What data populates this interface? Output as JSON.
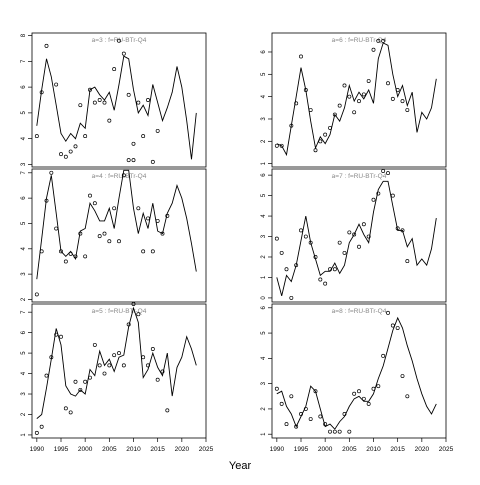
{
  "figure": {
    "xlabel": "Year",
    "panel_rows": 3,
    "panel_cols": 2,
    "x_ticks": [
      1990,
      1995,
      2000,
      2005,
      2010,
      2015,
      2020,
      2025
    ],
    "xlim": [
      1989,
      2025
    ],
    "line_color": "#000000",
    "point_color": "#000000",
    "title_color": "#888888"
  },
  "chart_data": [
    {
      "type": "line",
      "title": "a=3 : f=RU-BTr-Q4",
      "ylim": [
        2.9,
        8.1
      ],
      "y_ticks": [
        3,
        4,
        5,
        6,
        7,
        8
      ],
      "line": {
        "x": [
          1990,
          1991,
          1992,
          1993,
          1994,
          1995,
          1996,
          1997,
          1998,
          1999,
          2000,
          2001,
          2002,
          2003,
          2004,
          2005,
          2006,
          2007,
          2008,
          2009,
          2010,
          2011,
          2012,
          2013,
          2014,
          2015,
          2016,
          2017,
          2018,
          2019,
          2020,
          2021,
          2022,
          2023
        ],
        "y": [
          4.5,
          5.9,
          7.1,
          6.4,
          5.3,
          4.2,
          3.9,
          4.2,
          4.0,
          4.6,
          4.4,
          5.9,
          6.0,
          5.7,
          5.5,
          5.8,
          5.1,
          6.1,
          7.2,
          7.1,
          5.9,
          5.0,
          5.3,
          4.9,
          6.1,
          5.4,
          4.7,
          5.2,
          5.8,
          6.8,
          6.0,
          4.7,
          3.2,
          5.0
        ]
      },
      "points": {
        "x": [
          1990,
          1991,
          1992,
          1994,
          1995,
          1996,
          1997,
          1998,
          1999,
          2000,
          2001,
          2002,
          2003,
          2004,
          2005,
          2006,
          2007,
          2008,
          2009,
          2010,
          2011,
          2012,
          2013,
          2014,
          2015
        ],
        "y": [
          4.1,
          5.8,
          7.6,
          6.1,
          3.4,
          3.3,
          3.5,
          3.7,
          5.3,
          4.1,
          5.9,
          5.4,
          5.5,
          5.4,
          4.7,
          6.7,
          7.8,
          7.3,
          5.7,
          3.8,
          5.4,
          4.1,
          5.5,
          3.1,
          4.3
        ]
      }
    },
    {
      "type": "line",
      "title": "a=6 : f=RU-BTr-Q4",
      "ylim": [
        0.85,
        6.85
      ],
      "y_ticks": [
        1,
        2,
        3,
        4,
        5,
        6
      ],
      "line": {
        "x": [
          1990,
          1991,
          1992,
          1993,
          1994,
          1995,
          1996,
          1997,
          1998,
          1999,
          2000,
          2001,
          2002,
          2003,
          2004,
          2005,
          2006,
          2007,
          2008,
          2009,
          2010,
          2011,
          2012,
          2013,
          2014,
          2015,
          2016,
          2017,
          2018,
          2019,
          2020,
          2021,
          2022,
          2023
        ],
        "y": [
          1.9,
          1.8,
          1.4,
          2.7,
          4.0,
          5.3,
          4.3,
          2.9,
          1.7,
          2.2,
          1.9,
          2.3,
          3.2,
          2.9,
          3.5,
          4.5,
          3.8,
          4.2,
          3.9,
          4.3,
          3.7,
          5.7,
          6.4,
          6.3,
          5.0,
          4.0,
          4.5,
          3.6,
          4.2,
          2.4,
          3.3,
          3.0,
          3.5,
          4.8
        ]
      },
      "points": {
        "x": [
          1990,
          1991,
          1993,
          1994,
          1995,
          1996,
          1997,
          1998,
          1999,
          2000,
          2001,
          2002,
          2003,
          2004,
          2005,
          2006,
          2007,
          2008,
          2009,
          2010,
          2011,
          2012,
          2013,
          2014,
          2015,
          2016,
          2017
        ],
        "y": [
          1.8,
          1.8,
          2.7,
          3.7,
          5.8,
          4.3,
          3.4,
          1.6,
          2.0,
          2.3,
          2.6,
          3.2,
          3.6,
          4.5,
          4.0,
          3.3,
          3.8,
          4.1,
          4.7,
          6.1,
          6.5,
          6.5,
          4.6,
          3.9,
          4.3,
          3.8,
          3.4
        ]
      }
    },
    {
      "type": "line",
      "title": "a=4 : f=RU-BTr-Q4",
      "ylim": [
        1.9,
        7.15
      ],
      "y_ticks": [
        2,
        3,
        4,
        5,
        6,
        7
      ],
      "line": {
        "x": [
          1990,
          1991,
          1992,
          1993,
          1994,
          1995,
          1996,
          1997,
          1998,
          1999,
          2000,
          2001,
          2002,
          2003,
          2004,
          2005,
          2006,
          2007,
          2008,
          2009,
          2010,
          2011,
          2012,
          2013,
          2014,
          2015,
          2016,
          2017,
          2018,
          2019,
          2020,
          2021,
          2022,
          2023
        ],
        "y": [
          2.8,
          4.4,
          6.0,
          6.9,
          5.4,
          3.9,
          3.7,
          3.9,
          3.6,
          4.7,
          4.8,
          5.8,
          5.5,
          5.1,
          5.1,
          5.6,
          4.8,
          6.0,
          7.1,
          7.1,
          5.6,
          4.6,
          5.4,
          4.8,
          5.8,
          4.7,
          4.6,
          5.4,
          5.8,
          6.5,
          6.0,
          5.2,
          4.2,
          3.1
        ]
      },
      "points": {
        "x": [
          1990,
          1991,
          1992,
          1993,
          1994,
          1995,
          1996,
          1997,
          1998,
          1999,
          2000,
          2001,
          2002,
          2003,
          2004,
          2005,
          2006,
          2007,
          2008,
          2009,
          2010,
          2011,
          2012,
          2013,
          2014,
          2015,
          2016,
          2017
        ],
        "y": [
          2.2,
          3.9,
          5.9,
          7.0,
          4.8,
          3.9,
          3.5,
          3.8,
          3.7,
          4.6,
          3.7,
          6.1,
          5.8,
          4.5,
          4.6,
          4.3,
          5.6,
          4.3,
          6.9,
          7.5,
          7.5,
          5.6,
          3.9,
          5.2,
          3.9,
          5.1,
          4.6,
          5.3
        ]
      }
    },
    {
      "type": "line",
      "title": "a=7 : f=RU-BTr-Q4",
      "ylim": [
        -0.2,
        6.3
      ],
      "y_ticks": [
        0,
        1,
        2,
        3,
        4,
        5,
        6
      ],
      "line": {
        "x": [
          1990,
          1991,
          1992,
          1993,
          1994,
          1995,
          1996,
          1997,
          1998,
          1999,
          2000,
          2001,
          2002,
          2003,
          2004,
          2005,
          2006,
          2007,
          2008,
          2009,
          2010,
          2011,
          2012,
          2013,
          2014,
          2015,
          2016,
          2017,
          2018,
          2019,
          2020,
          2021,
          2022,
          2023
        ],
        "y": [
          1.0,
          0.1,
          1.1,
          0.8,
          1.6,
          2.8,
          4.0,
          2.7,
          1.9,
          1.1,
          1.3,
          1.3,
          1.7,
          1.2,
          1.6,
          2.7,
          3.1,
          3.6,
          3.1,
          2.7,
          4.2,
          5.3,
          5.7,
          5.7,
          4.5,
          3.3,
          3.3,
          2.5,
          2.9,
          1.6,
          1.9,
          1.6,
          2.4,
          3.9
        ]
      },
      "points": {
        "x": [
          1990,
          1991,
          1992,
          1993,
          1994,
          1995,
          1996,
          1997,
          1998,
          1999,
          2000,
          2001,
          2002,
          2003,
          2004,
          2005,
          2006,
          2007,
          2008,
          2009,
          2010,
          2011,
          2012,
          2013,
          2014,
          2015,
          2016,
          2017
        ],
        "y": [
          2.9,
          2.2,
          1.4,
          0.0,
          1.6,
          3.3,
          3.0,
          2.7,
          2.0,
          0.9,
          0.7,
          1.4,
          1.4,
          2.7,
          2.2,
          3.2,
          3.1,
          2.5,
          3.6,
          3.0,
          4.8,
          5.1,
          6.2,
          6.1,
          5.0,
          3.4,
          3.3,
          1.8
        ]
      }
    },
    {
      "type": "line",
      "title": "a=5 : f=RU-BTr-Q4",
      "ylim": [
        0.85,
        7.4
      ],
      "y_ticks": [
        1,
        2,
        3,
        4,
        5,
        6,
        7
      ],
      "line": {
        "x": [
          1990,
          1991,
          1992,
          1993,
          1994,
          1995,
          1996,
          1997,
          1998,
          1999,
          2000,
          2001,
          2002,
          2003,
          2004,
          2005,
          2006,
          2007,
          2008,
          2009,
          2010,
          2011,
          2012,
          2013,
          2014,
          2015,
          2016,
          2017,
          2018,
          2019,
          2020,
          2021,
          2022,
          2023
        ],
        "y": [
          1.8,
          2.0,
          3.3,
          4.7,
          6.2,
          5.4,
          3.4,
          3.0,
          2.9,
          3.2,
          3.0,
          4.2,
          3.9,
          5.1,
          4.4,
          4.7,
          4.1,
          4.8,
          4.9,
          6.3,
          7.2,
          6.5,
          3.8,
          4.2,
          5.0,
          4.3,
          3.9,
          5.0,
          2.9,
          4.3,
          4.8,
          5.8,
          5.2,
          4.4
        ]
      },
      "points": {
        "x": [
          1990,
          1991,
          1992,
          1993,
          1994,
          1995,
          1996,
          1997,
          1998,
          1999,
          2000,
          2001,
          2002,
          2003,
          2004,
          2005,
          2006,
          2007,
          2008,
          2009,
          2010,
          2011,
          2012,
          2013,
          2014,
          2015,
          2016,
          2017
        ],
        "y": [
          1.1,
          1.4,
          3.9,
          4.8,
          5.9,
          5.8,
          2.3,
          2.1,
          3.6,
          3.2,
          3.6,
          3.8,
          5.4,
          4.4,
          4.0,
          4.4,
          4.9,
          5.0,
          4.4,
          6.4,
          7.4,
          6.9,
          4.8,
          4.4,
          5.2,
          3.7,
          4.1,
          2.2
        ]
      }
    },
    {
      "type": "line",
      "title": "a=8 : f=RU-BTr-Q4",
      "ylim": [
        0.85,
        6.15
      ],
      "y_ticks": [
        1,
        2,
        3,
        4,
        5,
        6
      ],
      "line": {
        "x": [
          1990,
          1991,
          1992,
          1993,
          1994,
          1995,
          1996,
          1997,
          1998,
          1999,
          2000,
          2001,
          2002,
          2003,
          2004,
          2005,
          2006,
          2007,
          2008,
          2009,
          2010,
          2011,
          2012,
          2013,
          2014,
          2015,
          2016,
          2017,
          2018,
          2019,
          2020,
          2021,
          2022,
          2023
        ],
        "y": [
          2.6,
          2.7,
          2.1,
          1.8,
          1.3,
          1.7,
          2.1,
          2.9,
          2.7,
          2.0,
          1.3,
          1.4,
          1.2,
          1.5,
          1.7,
          2.1,
          2.4,
          2.5,
          2.3,
          2.3,
          2.6,
          3.2,
          3.7,
          4.4,
          5.1,
          5.6,
          5.2,
          4.5,
          3.9,
          3.2,
          2.6,
          2.1,
          1.8,
          2.2
        ]
      },
      "points": {
        "x": [
          1990,
          1991,
          1992,
          1993,
          1994,
          1995,
          1996,
          1997,
          1998,
          1999,
          2000,
          2001,
          2002,
          2003,
          2004,
          2005,
          2006,
          2007,
          2008,
          2009,
          2010,
          2011,
          2012,
          2013,
          2014,
          2015,
          2016,
          2017
        ],
        "y": [
          2.8,
          2.2,
          1.4,
          2.5,
          1.3,
          1.8,
          2.0,
          1.6,
          2.7,
          1.7,
          1.4,
          1.1,
          1.1,
          1.1,
          1.8,
          1.1,
          2.6,
          2.7,
          2.4,
          2.2,
          2.8,
          2.9,
          4.1,
          5.8,
          5.3,
          5.2,
          3.3,
          2.5
        ]
      }
    }
  ]
}
